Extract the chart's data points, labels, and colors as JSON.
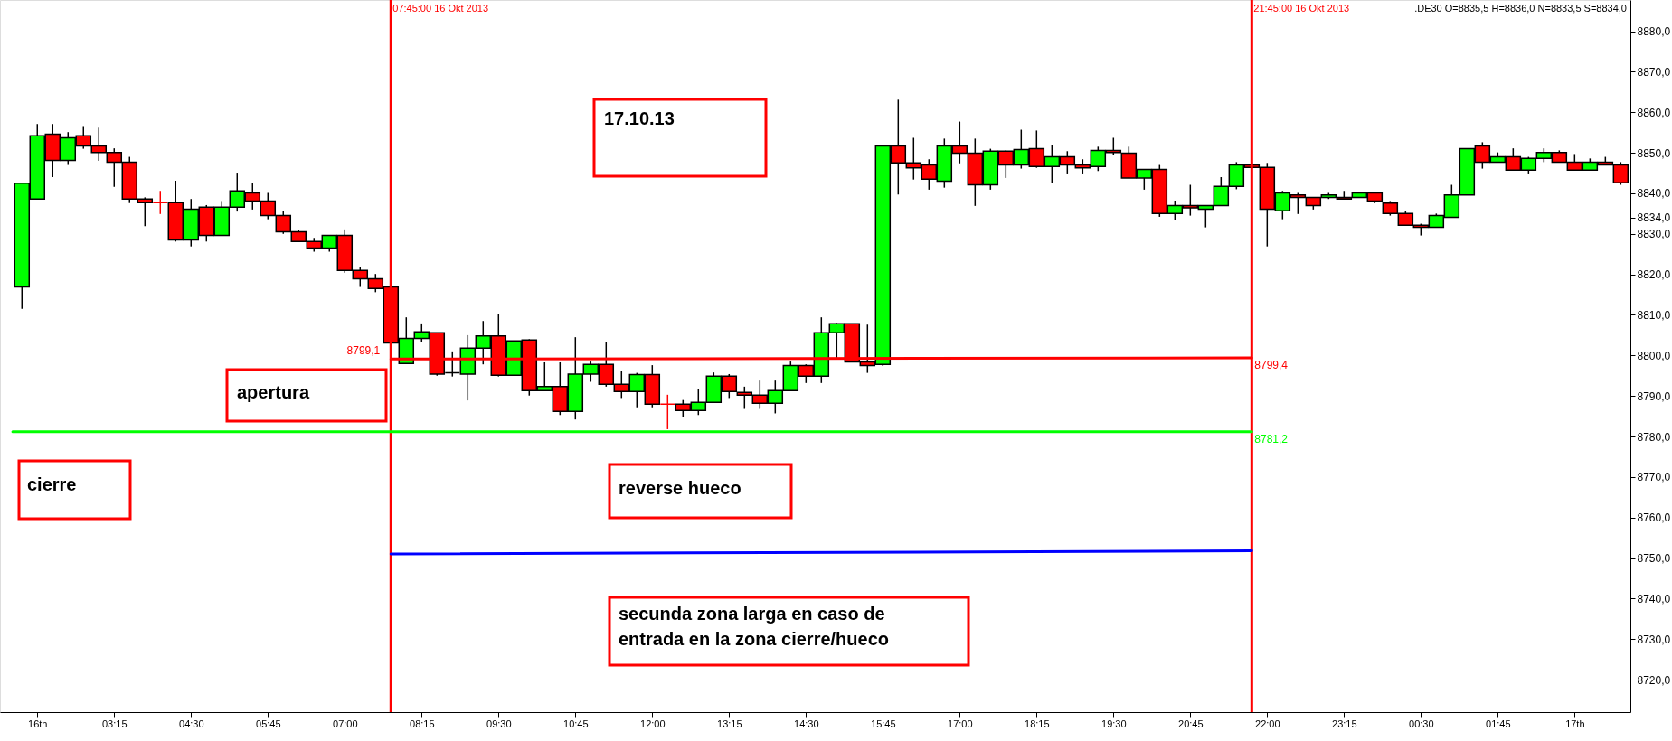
{
  "chart_data": {
    "type": "candlestick",
    "x": [
      "2013-10-16T01:45",
      "2013-10-16T02:00",
      "2013-10-16T02:15",
      "2013-10-16T02:30",
      "2013-10-16T02:45",
      "2013-10-16T03:00",
      "2013-10-16T03:15",
      "2013-10-16T03:30",
      "2013-10-16T03:45",
      "2013-10-16T04:00",
      "2013-10-16T04:15",
      "2013-10-16T04:30",
      "2013-10-16T04:45",
      "2013-10-16T05:00",
      "2013-10-16T05:15",
      "2013-10-16T05:30",
      "2013-10-16T05:45",
      "2013-10-16T06:00",
      "2013-10-16T06:15",
      "2013-10-16T06:30",
      "2013-10-16T06:45",
      "2013-10-16T07:00",
      "2013-10-16T07:15",
      "2013-10-16T07:30",
      "2013-10-16T07:45",
      "2013-10-16T08:00",
      "2013-10-16T08:15",
      "2013-10-16T08:30",
      "2013-10-16T08:45",
      "2013-10-16T09:00",
      "2013-10-16T09:15",
      "2013-10-16T09:30",
      "2013-10-16T09:45",
      "2013-10-16T10:00",
      "2013-10-16T10:15",
      "2013-10-16T10:30",
      "2013-10-16T10:45",
      "2013-10-16T11:00",
      "2013-10-16T11:15",
      "2013-10-16T11:30",
      "2013-10-16T11:45",
      "2013-10-16T12:00",
      "2013-10-16T12:15",
      "2013-10-16T12:30",
      "2013-10-16T12:45",
      "2013-10-16T13:00",
      "2013-10-16T13:15",
      "2013-10-16T13:30",
      "2013-10-16T13:45",
      "2013-10-16T14:00",
      "2013-10-16T14:15",
      "2013-10-16T14:30",
      "2013-10-16T14:45",
      "2013-10-16T15:00",
      "2013-10-16T15:15",
      "2013-10-16T15:30",
      "2013-10-16T15:45",
      "2013-10-16T16:00",
      "2013-10-16T16:15",
      "2013-10-16T16:30",
      "2013-10-16T16:45",
      "2013-10-16T17:00",
      "2013-10-16T17:15",
      "2013-10-16T17:30",
      "2013-10-16T17:45",
      "2013-10-16T18:00",
      "2013-10-16T18:15",
      "2013-10-16T18:30",
      "2013-10-16T18:45",
      "2013-10-16T19:00",
      "2013-10-16T19:15",
      "2013-10-16T19:30",
      "2013-10-16T19:45",
      "2013-10-16T20:00",
      "2013-10-16T20:15",
      "2013-10-16T20:30",
      "2013-10-16T20:45",
      "2013-10-16T21:00",
      "2013-10-16T21:15",
      "2013-10-16T21:30",
      "2013-10-16T21:45",
      "2013-10-16T22:00",
      "2013-10-16T22:15",
      "2013-10-16T22:30",
      "2013-10-16T22:45",
      "2013-10-16T23:00",
      "2013-10-16T23:15",
      "2013-10-16T23:30",
      "2013-10-16T23:45",
      "2013-10-17T00:00",
      "2013-10-17T00:15",
      "2013-10-17T00:30",
      "2013-10-17T00:45",
      "2013-10-17T01:00",
      "2013-10-17T01:15",
      "2013-10-17T01:30",
      "2013-10-17T01:45",
      "2013-10-17T02:00",
      "2013-10-17T02:15",
      "2013-10-17T02:30",
      "2013-10-17T02:45",
      "2013-10-17T03:00",
      "2013-10-17T03:15",
      "2013-10-17T03:30",
      "2013-10-17T03:45"
    ],
    "ohlc": [
      [
        8816.9,
        8842.5,
        8811.5,
        8842.5
      ],
      [
        8838.6,
        8857.1,
        8838.6,
        8854.2
      ],
      [
        8854.6,
        8857.1,
        8844.0,
        8848.1
      ],
      [
        8848.1,
        8855.1,
        8847.0,
        8853.7
      ],
      [
        8854.2,
        8856.6,
        8851.0,
        8851.7
      ],
      [
        8851.7,
        8856.2,
        8848.0,
        8850.1
      ],
      [
        8850.1,
        8851.1,
        8841.6,
        8847.7
      ],
      [
        8847.7,
        8849.0,
        8837.6,
        8838.6
      ],
      [
        8838.6,
        8839.0,
        8831.9,
        8837.7
      ],
      [
        8837.7,
        8840.6,
        8834.9,
        8837.7
      ],
      [
        8837.7,
        8843.1,
        8828.1,
        8828.5
      ],
      [
        8828.5,
        8838.6,
        8826.9,
        8836.1
      ],
      [
        8836.6,
        8837.1,
        8828.1,
        8829.6
      ],
      [
        8829.6,
        8838.1,
        8829.6,
        8836.6
      ],
      [
        8836.6,
        8845.1,
        8835.5,
        8840.6
      ],
      [
        8840.1,
        8842.6,
        8836.0,
        8838.1
      ],
      [
        8838.1,
        8840.1,
        8833.6,
        8834.5
      ],
      [
        8834.5,
        8835.7,
        8830.0,
        8830.5
      ],
      [
        8830.5,
        8831.0,
        8828.1,
        8828.1
      ],
      [
        8828.1,
        8829.0,
        8825.6,
        8826.5
      ],
      [
        8826.5,
        8829.6,
        8825.6,
        8829.6
      ],
      [
        8829.6,
        8831.1,
        8820.4,
        8821.0
      ],
      [
        8821.0,
        8821.7,
        8816.9,
        8818.9
      ],
      [
        8818.9,
        8820.1,
        8815.6,
        8816.5
      ],
      [
        8816.9,
        8816.9,
        8803.1,
        8803.1
      ],
      [
        8798.0,
        8809.4,
        8798.0,
        8804.2
      ],
      [
        8804.2,
        8807.9,
        8803.3,
        8805.8
      ],
      [
        8805.6,
        8805.6,
        8795.0,
        8795.4
      ],
      [
        8795.7,
        8801.0,
        8794.8,
        8795.7
      ],
      [
        8795.4,
        8805.0,
        8788.9,
        8801.8
      ],
      [
        8801.8,
        8808.5,
        8797.8,
        8804.8
      ],
      [
        8804.8,
        8810.3,
        8794.8,
        8795.1
      ],
      [
        8795.1,
        8803.6,
        8795.1,
        8803.6
      ],
      [
        8803.8,
        8804.0,
        8790.1,
        8791.3
      ],
      [
        8791.3,
        8798.3,
        8791.3,
        8792.3
      ],
      [
        8792.3,
        8798.3,
        8785.3,
        8786.2
      ],
      [
        8786.2,
        8804.5,
        8784.2,
        8795.4
      ],
      [
        8795.4,
        8798.5,
        8793.5,
        8797.8
      ],
      [
        8797.8,
        8803.2,
        8792.3,
        8792.9
      ],
      [
        8792.9,
        8796.1,
        8789.5,
        8791.1
      ],
      [
        8791.1,
        8795.7,
        8787.2,
        8795.3
      ],
      [
        8795.3,
        8797.6,
        8787.2,
        8788.0
      ],
      [
        8788.0,
        8790.3,
        8781.8,
        8788.0
      ],
      [
        8788.0,
        8789.0,
        8784.8,
        8786.4
      ],
      [
        8786.4,
        8791.6,
        8785.3,
        8788.4
      ],
      [
        8788.4,
        8795.8,
        8788.4,
        8794.9
      ],
      [
        8794.9,
        8795.4,
        8789.5,
        8791.1
      ],
      [
        8790.9,
        8792.3,
        8786.8,
        8790.2
      ],
      [
        8790.2,
        8793.8,
        8786.8,
        8788.2
      ],
      [
        8788.2,
        8793.8,
        8785.7,
        8791.3
      ],
      [
        8791.3,
        8798.5,
        8791.3,
        8797.5
      ],
      [
        8797.5,
        8797.8,
        8793.2,
        8794.9
      ],
      [
        8794.9,
        8809.4,
        8793.2,
        8805.6
      ],
      [
        8805.6,
        8808.0,
        8799.4,
        8807.8
      ],
      [
        8807.8,
        8807.8,
        8798.4,
        8798.4
      ],
      [
        8798.4,
        8807.6,
        8795.7,
        8797.5
      ],
      [
        8797.8,
        8851.7,
        8797.4,
        8851.7
      ],
      [
        8851.7,
        8863.1,
        8839.7,
        8847.5
      ],
      [
        8847.5,
        8853.7,
        8843.4,
        8846.3
      ],
      [
        8847.0,
        8848.4,
        8840.9,
        8843.5
      ],
      [
        8843.0,
        8853.5,
        8841.4,
        8851.7
      ],
      [
        8851.7,
        8857.7,
        8847.4,
        8849.9
      ],
      [
        8849.9,
        8853.5,
        8836.9,
        8842.1
      ],
      [
        8842.1,
        8851.0,
        8840.9,
        8850.4
      ],
      [
        8850.4,
        8850.6,
        8843.8,
        8847.0
      ],
      [
        8847.0,
        8855.7,
        8846.1,
        8850.8
      ],
      [
        8851.0,
        8855.5,
        8846.3,
        8846.6
      ],
      [
        8846.6,
        8851.9,
        8842.5,
        8849.0
      ],
      [
        8849.0,
        8850.4,
        8844.9,
        8847.0
      ],
      [
        8847.0,
        8848.4,
        8844.9,
        8846.3
      ],
      [
        8846.6,
        8851.5,
        8845.5,
        8850.6
      ],
      [
        8850.6,
        8853.7,
        8849.4,
        8850.1
      ],
      [
        8849.9,
        8851.5,
        8843.8,
        8843.8
      ],
      [
        8843.8,
        8845.9,
        8840.9,
        8845.9
      ],
      [
        8845.9,
        8847.0,
        8834.2,
        8835.0
      ],
      [
        8835.0,
        8838.2,
        8833.4,
        8837.0
      ],
      [
        8837.0,
        8842.1,
        8834.5,
        8836.4
      ],
      [
        8836.1,
        8837.0,
        8831.6,
        8837.0
      ],
      [
        8837.0,
        8844.0,
        8837.0,
        8841.7
      ],
      [
        8841.7,
        8847.7,
        8841.0,
        8847.0
      ],
      [
        8847.0,
        8847.0,
        8846.4,
        8846.4
      ],
      [
        8846.4,
        8847.5,
        8826.9,
        8836.1
      ],
      [
        8835.7,
        8840.6,
        8833.6,
        8840.1
      ],
      [
        8839.6,
        8840.1,
        8834.9,
        8839.0
      ],
      [
        8839.0,
        8839.0,
        8836.0,
        8837.0
      ],
      [
        8839.0,
        8840.1,
        8838.6,
        8839.6
      ],
      [
        8839.0,
        8840.6,
        8838.6,
        8838.6
      ],
      [
        8839.0,
        8840.1,
        8839.0,
        8840.1
      ],
      [
        8840.1,
        8840.1,
        8837.6,
        8838.1
      ],
      [
        8837.6,
        8838.1,
        8834.5,
        8835.0
      ],
      [
        8835.0,
        8835.7,
        8832.1,
        8832.1
      ],
      [
        8832.1,
        8832.5,
        8829.6,
        8831.6
      ],
      [
        8831.6,
        8835.0,
        8831.6,
        8834.5
      ],
      [
        8834.1,
        8842.1,
        8834.1,
        8839.6
      ],
      [
        8839.6,
        8851.0,
        8839.6,
        8851.0
      ],
      [
        8851.7,
        8852.6,
        8846.1,
        8847.7
      ],
      [
        8847.7,
        8850.1,
        8847.7,
        8849.0
      ],
      [
        8849.0,
        8851.1,
        8845.7,
        8845.7
      ],
      [
        8845.7,
        8849.0,
        8844.9,
        8848.6
      ],
      [
        8848.6,
        8851.1,
        8847.7,
        8850.1
      ],
      [
        8850.1,
        8850.6,
        8847.7,
        8847.7
      ],
      [
        8847.7,
        8849.7,
        8845.7,
        8845.7
      ],
      [
        8845.7,
        8848.6,
        8845.7,
        8847.7
      ],
      [
        8847.7,
        8849.0,
        8847.0,
        8847.0
      ],
      [
        8847.0,
        8847.7,
        8842.1,
        8842.6
      ]
    ],
    "colors": [
      "#00ff00",
      "#00ff00",
      "#ff0000",
      "#00ff00",
      "#ff0000",
      "#ff0000",
      "#ff0000",
      "#ff0000",
      "#ff0000",
      "#ff0000",
      "#ff0000",
      "#00ff00",
      "#ff0000",
      "#00ff00",
      "#00ff00",
      "#ff0000",
      "#ff0000",
      "#ff0000",
      "#ff0000",
      "#ff0000",
      "#00ff00",
      "#ff0000",
      "#ff0000",
      "#ff0000",
      "#ff0000",
      "#00ff00",
      "#00ff00",
      "#ff0000",
      "#000000",
      "#00ff00",
      "#00ff00",
      "#ff0000",
      "#00ff00",
      "#ff0000",
      "#00ff00",
      "#ff0000",
      "#00ff00",
      "#00ff00",
      "#ff0000",
      "#ff0000",
      "#00ff00",
      "#ff0000",
      "#ff0000",
      "#ff0000",
      "#00ff00",
      "#00ff00",
      "#ff0000",
      "#ff0000",
      "#ff0000",
      "#00ff00",
      "#00ff00",
      "#ff0000",
      "#00ff00",
      "#00ff00",
      "#ff0000",
      "#ff0000",
      "#00ff00",
      "#ff0000",
      "#ff0000",
      "#ff0000",
      "#00ff00",
      "#ff0000",
      "#ff0000",
      "#00ff00",
      "#ff0000",
      "#00ff00",
      "#ff0000",
      "#00ff00",
      "#ff0000",
      "#ff0000",
      "#00ff00",
      "#ff0000",
      "#ff0000",
      "#00ff00",
      "#ff0000",
      "#00ff00",
      "#ff0000",
      "#00ff00",
      "#00ff00",
      "#00ff00",
      "#ff0000",
      "#ff0000",
      "#00ff00",
      "#ff0000",
      "#ff0000",
      "#00ff00",
      "#ff0000",
      "#00ff00",
      "#ff0000",
      "#ff0000",
      "#ff0000",
      "#ff0000",
      "#00ff00",
      "#00ff00",
      "#00ff00",
      "#ff0000",
      "#00ff00",
      "#ff0000",
      "#00ff00",
      "#00ff00",
      "#ff0000",
      "#ff0000",
      "#00ff00",
      "#ff0000",
      "#ff0000"
    ],
    "series": [
      {
        "type": "line",
        "color": "#ff0000",
        "x": [
          "2013-10-16T07:45",
          "2013-10-16T21:45"
        ],
        "values": [
          8799.1,
          8799.4
        ],
        "value_labels": [
          "8799,1",
          "8799,4"
        ]
      },
      {
        "type": "line",
        "color": "#00ff00",
        "x": [
          "2013-10-16T01:36",
          "2013-10-16T21:45"
        ],
        "values": [
          8781.2,
          8781.2
        ],
        "value_labels": [
          null,
          "8781,2"
        ]
      },
      {
        "type": "line",
        "color": "#0000ff",
        "x": [
          "2013-10-16T07:45",
          "2013-10-16T21:45"
        ],
        "values": [
          8751.0,
          8751.8
        ]
      }
    ],
    "ref_lines": [
      {
        "axis": "x",
        "value": "2013-10-16T07:45",
        "label": "07:45:00 16 Okt 2013",
        "color": "#ff0000"
      },
      {
        "axis": "x",
        "value": "2013-10-16T21:45",
        "label": "21:45:00 16 Okt 2013",
        "color": "#ff0000"
      }
    ],
    "annotations": [
      "17.10.13",
      "apertura",
      "cierre",
      "reverse hueco",
      "secunda zona larga en caso de\nentrada en la zona cierre/hueco",
      ".DE30 O=8835,5 H=8836,0 N=8833,5 S=8834,0"
    ],
    "xlim": [
      "2013-10-16T01:28",
      "2013-10-17T03:50"
    ],
    "xticks": [
      {
        "value": "2013-10-16T02:00",
        "label": "16th"
      },
      {
        "value": "2013-10-16T03:15",
        "label": "03:15"
      },
      {
        "value": "2013-10-16T04:30",
        "label": "04:30"
      },
      {
        "value": "2013-10-16T05:45",
        "label": "05:45"
      },
      {
        "value": "2013-10-16T07:00",
        "label": "07:00"
      },
      {
        "value": "2013-10-16T08:15",
        "label": "08:15"
      },
      {
        "value": "2013-10-16T09:30",
        "label": "09:30"
      },
      {
        "value": "2013-10-16T10:45",
        "label": "10:45"
      },
      {
        "value": "2013-10-16T12:00",
        "label": "12:00"
      },
      {
        "value": "2013-10-16T13:15",
        "label": "13:15"
      },
      {
        "value": "2013-10-16T14:30",
        "label": "14:30"
      },
      {
        "value": "2013-10-16T15:45",
        "label": "15:45"
      },
      {
        "value": "2013-10-16T17:00",
        "label": "17:00"
      },
      {
        "value": "2013-10-16T18:15",
        "label": "18:15"
      },
      {
        "value": "2013-10-16T19:30",
        "label": "19:30"
      },
      {
        "value": "2013-10-16T20:45",
        "label": "20:45"
      },
      {
        "value": "2013-10-16T22:00",
        "label": "22:00"
      },
      {
        "value": "2013-10-16T23:15",
        "label": "23:15"
      },
      {
        "value": "2013-10-17T00:30",
        "label": "00:30"
      },
      {
        "value": "2013-10-17T01:45",
        "label": "01:45"
      },
      {
        "value": "2013-10-17T03:00",
        "label": "17th"
      }
    ],
    "ylim": [
      8712.0,
      8887.7
    ],
    "yticks": [
      {
        "value": 8720,
        "label": "8720,0"
      },
      {
        "value": 8730,
        "label": "8730,0"
      },
      {
        "value": 8740,
        "label": "8740,0"
      },
      {
        "value": 8750,
        "label": "8750,0"
      },
      {
        "value": 8760,
        "label": "8760,0"
      },
      {
        "value": 8770,
        "label": "8770,0"
      },
      {
        "value": 8780,
        "label": "8780,0"
      },
      {
        "value": 8790,
        "label": "8790,0"
      },
      {
        "value": 8800,
        "label": "8800,0"
      },
      {
        "value": 8810,
        "label": "8810,0"
      },
      {
        "value": 8820,
        "label": "8820,0"
      },
      {
        "value": 8830,
        "label": "8830,0"
      },
      {
        "value": 8834,
        "label": "8834,0"
      },
      {
        "value": 8840,
        "label": "8840,0"
      },
      {
        "value": 8850,
        "label": "8850,0"
      },
      {
        "value": 8860,
        "label": "8860,0"
      },
      {
        "value": 8870,
        "label": "8870,0"
      },
      {
        "value": 8880,
        "label": "8880,0"
      }
    ]
  }
}
